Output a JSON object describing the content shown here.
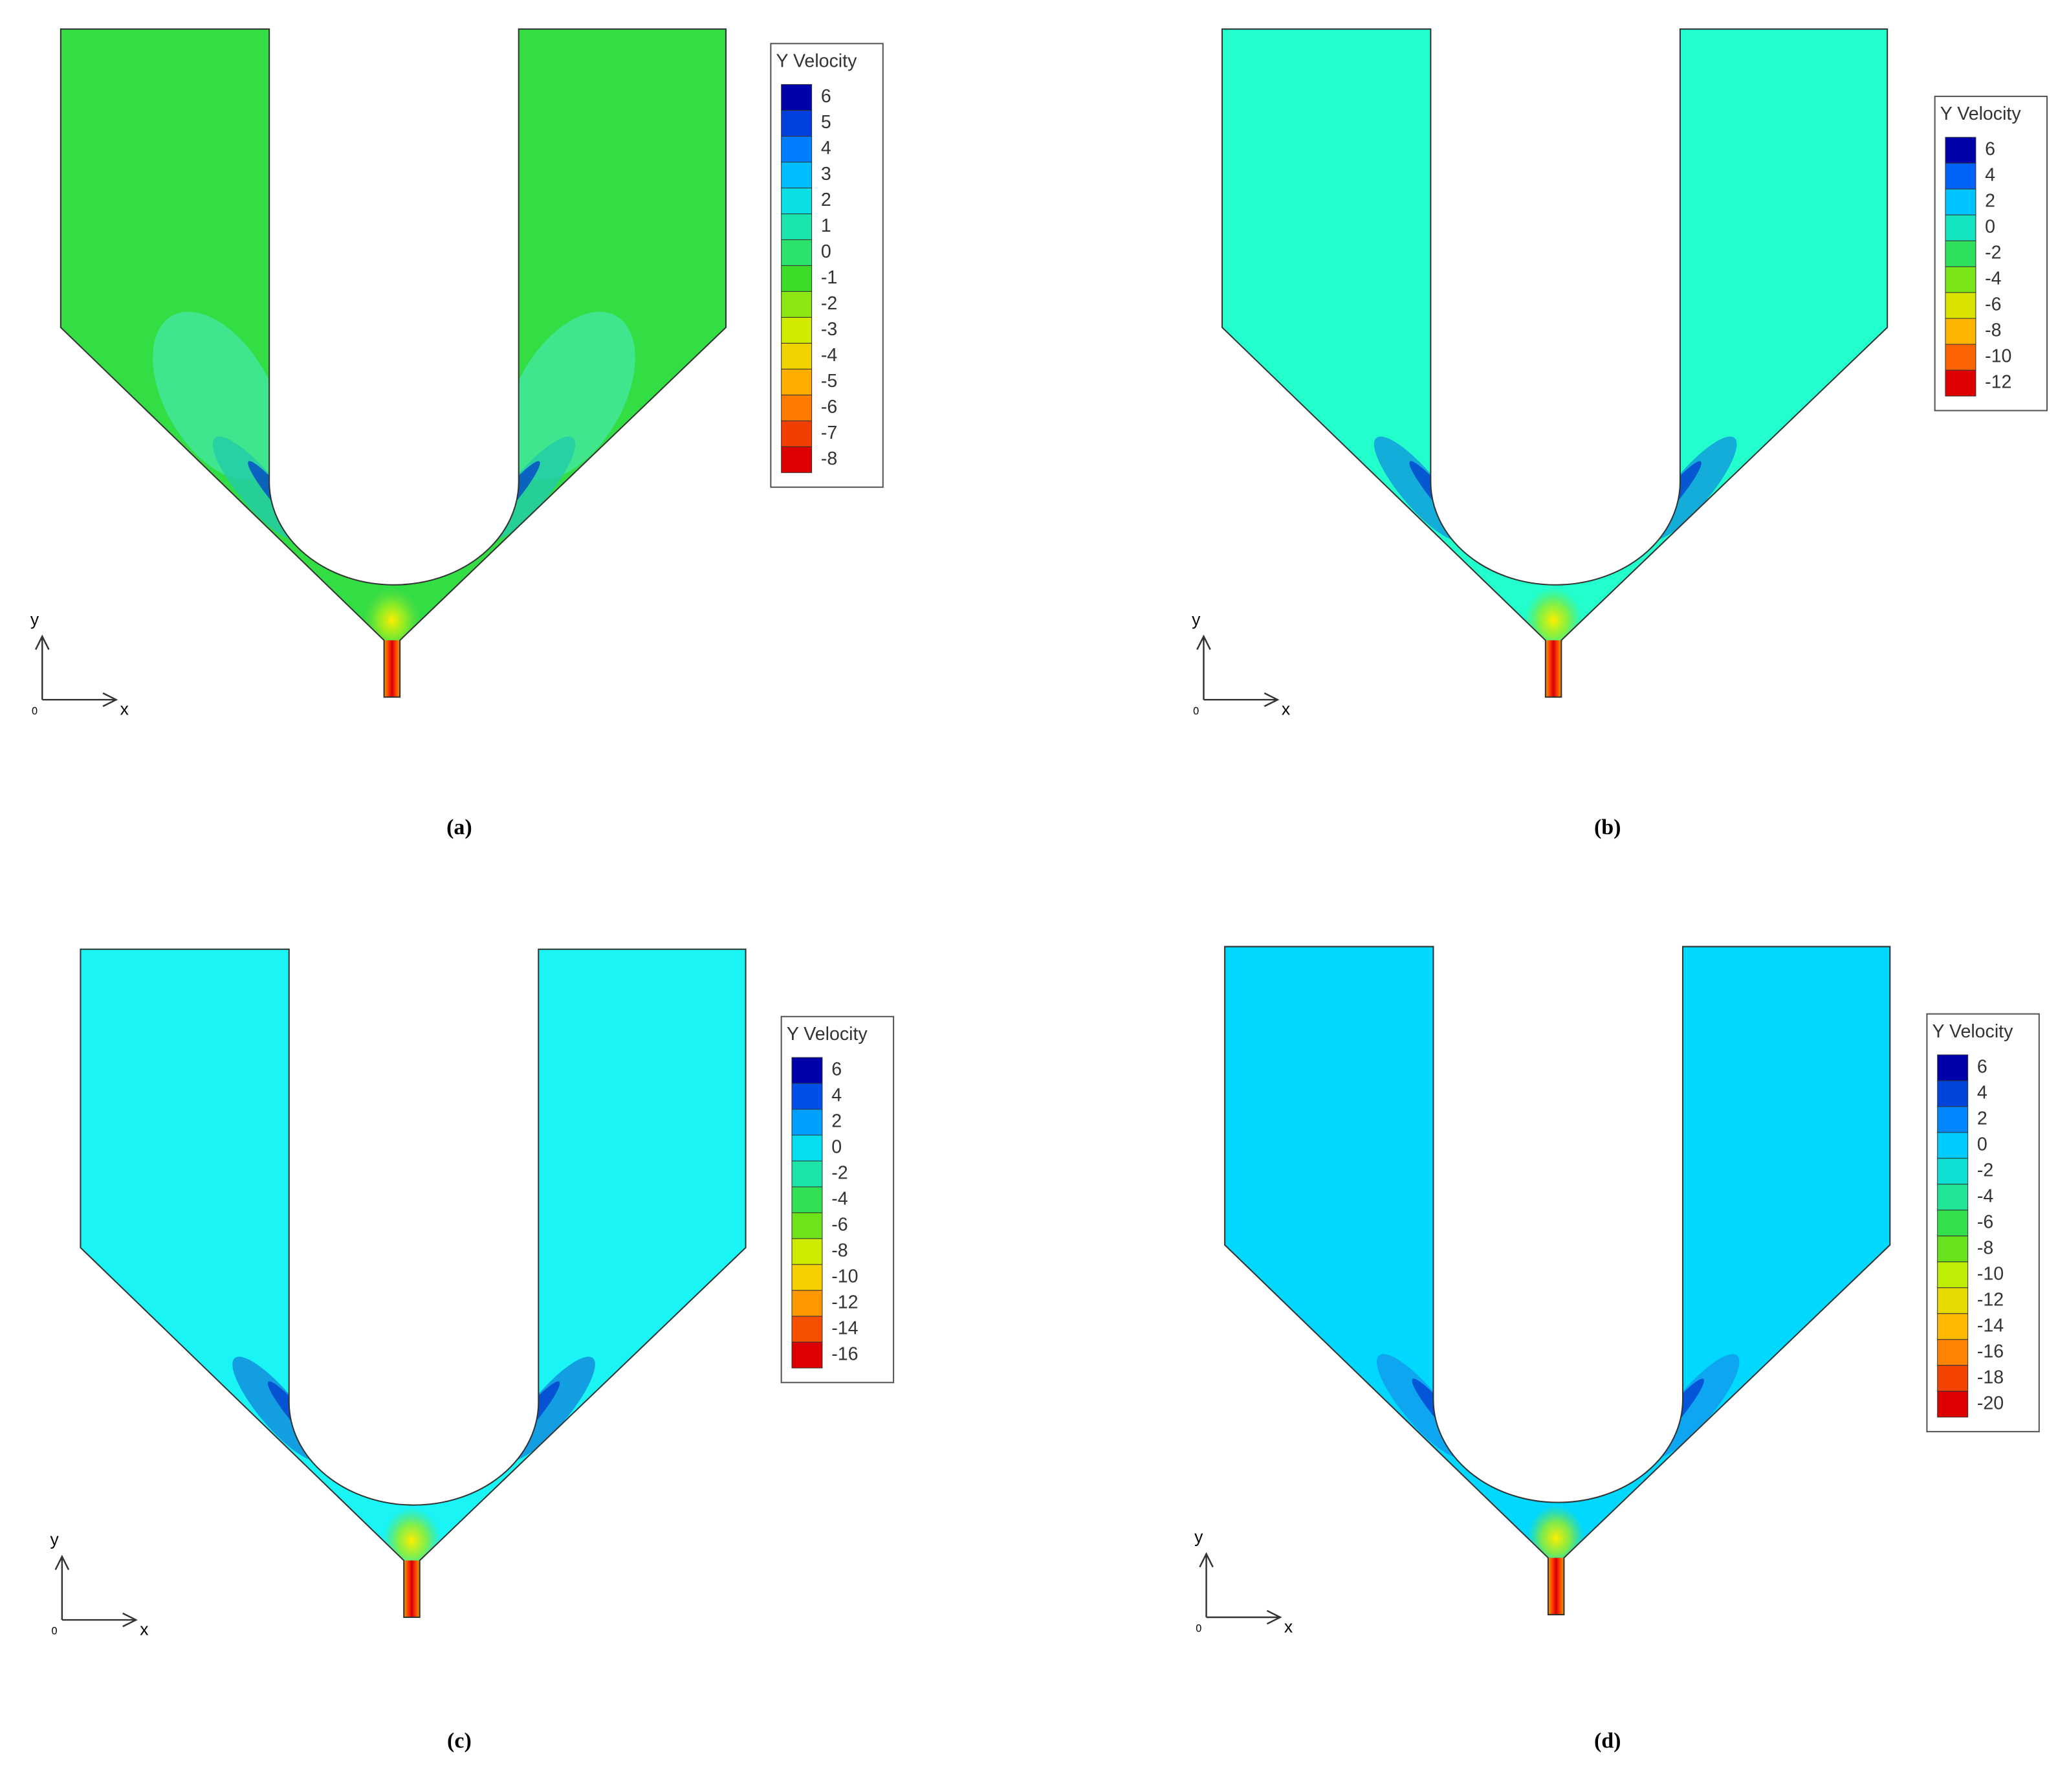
{
  "panels": [
    {
      "caption": "(a)",
      "legend": {
        "title": "Y Velocity",
        "levels": [
          6,
          5,
          4,
          3,
          2,
          1,
          0,
          -1,
          -2,
          -3,
          -4,
          -5,
          -6,
          -7,
          -8
        ]
      },
      "axes": {
        "y": "y",
        "x": "x",
        "origin": "0"
      }
    },
    {
      "caption": "(b)",
      "legend": {
        "title": "Y Velocity",
        "levels": [
          6,
          4,
          2,
          0,
          -2,
          -4,
          -6,
          -8,
          -10,
          -12
        ]
      },
      "axes": {
        "y": "y",
        "x": "x",
        "origin": "0"
      }
    },
    {
      "caption": "(c)",
      "legend": {
        "title": "Y Velocity",
        "levels": [
          6,
          4,
          2,
          0,
          -2,
          -4,
          -6,
          -8,
          -10,
          -12,
          -14,
          -16
        ]
      },
      "axes": {
        "y": "y",
        "x": "x",
        "origin": "0"
      }
    },
    {
      "caption": "(d)",
      "legend": {
        "title": "Y Velocity",
        "levels": [
          6,
          4,
          2,
          0,
          -2,
          -4,
          -6,
          -8,
          -10,
          -12,
          -14,
          -16,
          -18,
          -20
        ]
      },
      "axes": {
        "y": "y",
        "x": "x",
        "origin": "0"
      }
    }
  ]
}
